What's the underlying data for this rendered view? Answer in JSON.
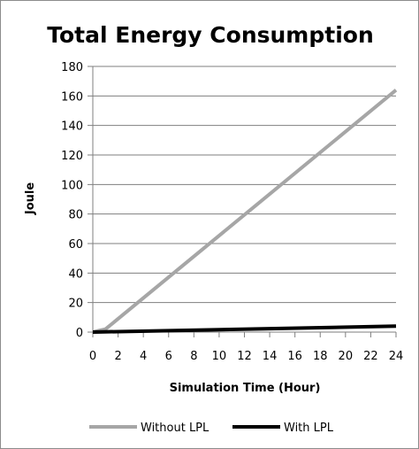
{
  "chart_data": {
    "type": "line",
    "title": "Total Energy Consumption",
    "xlabel": "Simulation Time (Hour)",
    "ylabel": "Joule",
    "xlim": [
      0,
      24
    ],
    "ylim": [
      0,
      180
    ],
    "x_ticks": [
      0,
      2,
      4,
      6,
      8,
      10,
      12,
      14,
      16,
      18,
      20,
      22,
      24
    ],
    "y_ticks": [
      0,
      20,
      40,
      60,
      80,
      100,
      120,
      140,
      160,
      180
    ],
    "grid": "horizontal",
    "legend_position": "bottom",
    "series": [
      {
        "name": "Without LPL",
        "color": "#a6a6a6",
        "points": [
          [
            0,
            0
          ],
          [
            0.5,
            1
          ],
          [
            1,
            2
          ],
          [
            24,
            164
          ]
        ]
      },
      {
        "name": "With LPL",
        "color": "#000000",
        "points": [
          [
            0,
            0
          ],
          [
            24,
            4
          ]
        ]
      }
    ]
  }
}
